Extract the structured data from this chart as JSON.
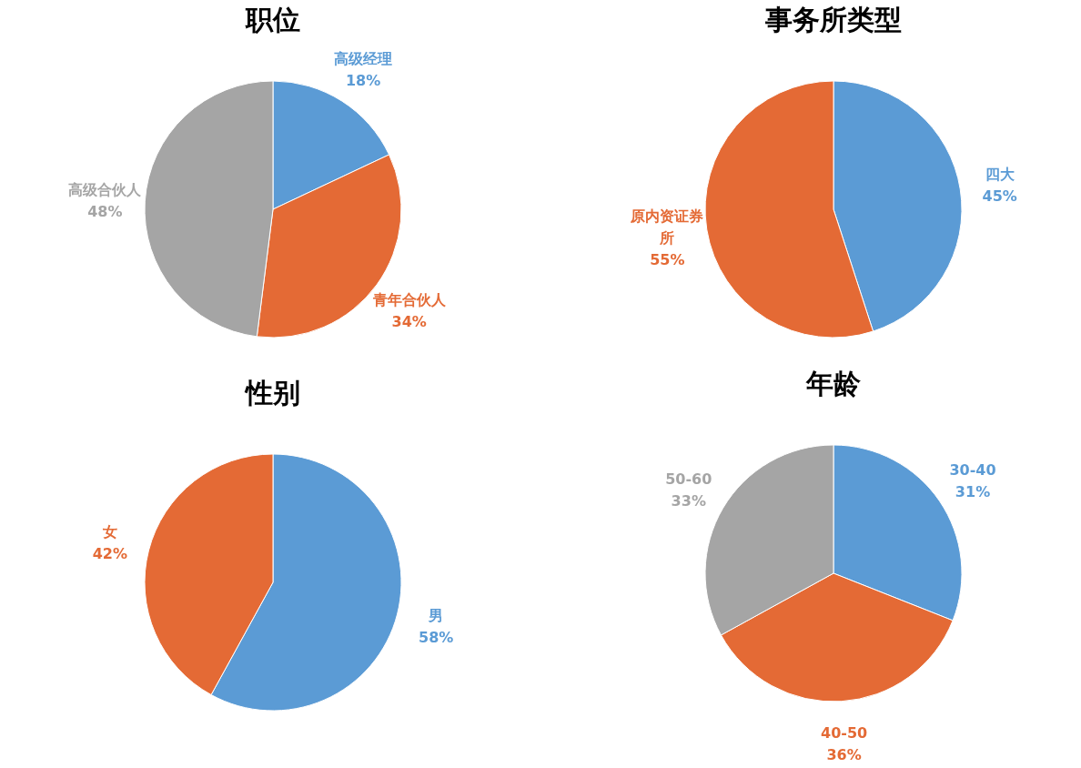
{
  "chart_data": [
    {
      "type": "pie",
      "title": "职位",
      "categories": [
        "高级经理",
        "青年合伙人",
        "高级合伙人"
      ],
      "values": [
        18,
        34,
        48
      ],
      "value_labels": [
        "18%",
        "34%",
        "48%"
      ],
      "colors": [
        "#5b9bd5",
        "#e46a35",
        "#a5a5a5"
      ]
    },
    {
      "type": "pie",
      "title": "事务所类型",
      "categories": [
        "四大",
        "原内资证券所"
      ],
      "values": [
        45,
        55
      ],
      "value_labels": [
        "45%",
        "55%"
      ],
      "colors": [
        "#5b9bd5",
        "#e46a35"
      ]
    },
    {
      "type": "pie",
      "title": "性别",
      "categories": [
        "男",
        "女"
      ],
      "values": [
        58,
        42
      ],
      "value_labels": [
        "58%",
        "42%"
      ],
      "colors": [
        "#5b9bd5",
        "#e46a35"
      ]
    },
    {
      "type": "pie",
      "title": "年龄",
      "categories": [
        "30-40",
        "40-50",
        "50-60"
      ],
      "values": [
        31,
        36,
        33
      ],
      "value_labels": [
        "31%",
        "36%",
        "33%"
      ],
      "colors": [
        "#5b9bd5",
        "#e46a35",
        "#a5a5a5"
      ]
    }
  ]
}
